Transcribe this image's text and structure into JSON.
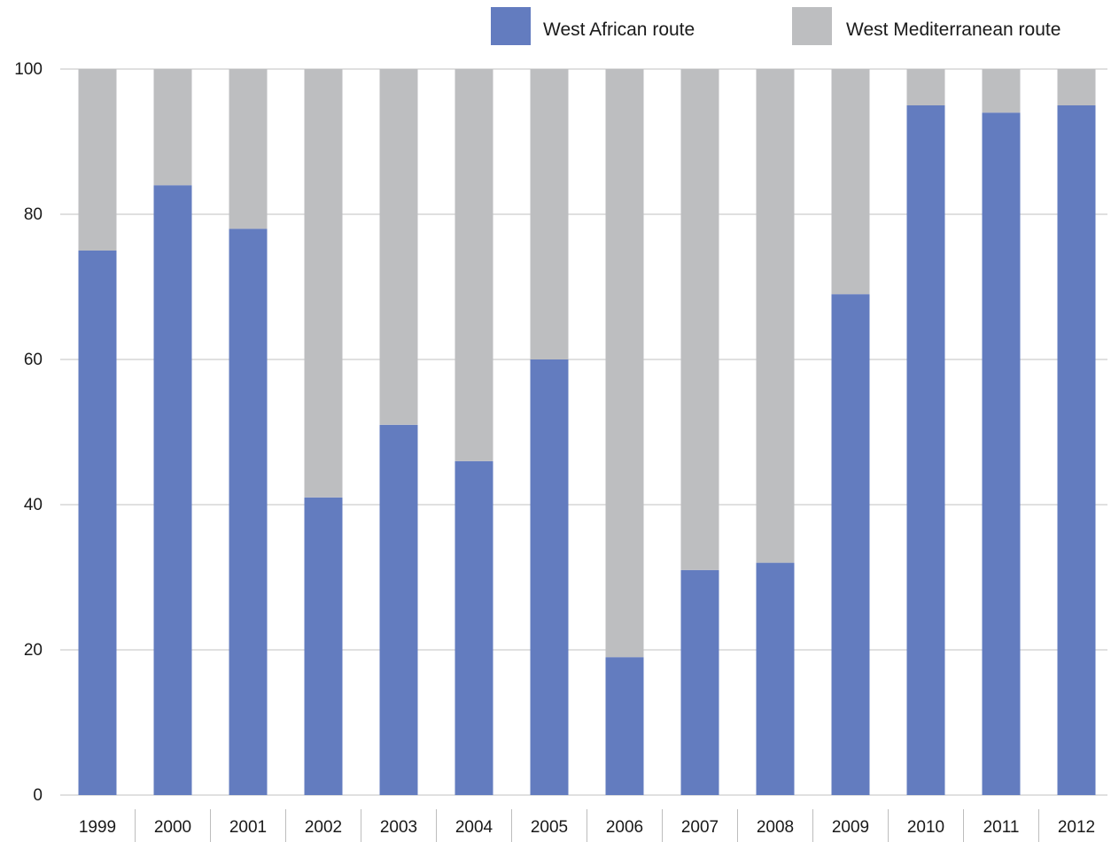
{
  "chart_data": {
    "type": "bar",
    "stacked": true,
    "title": "",
    "xlabel": "",
    "ylabel": "",
    "categories": [
      "1999",
      "2000",
      "2001",
      "2002",
      "2003",
      "2004",
      "2005",
      "2006",
      "2007",
      "2008",
      "2009",
      "2010",
      "2011",
      "2012"
    ],
    "series": [
      {
        "name": "West African route",
        "color": "#637cbf",
        "values": [
          75,
          84,
          78,
          41,
          51,
          46,
          60,
          19,
          31,
          32,
          69,
          95,
          94,
          95
        ]
      },
      {
        "name": "West Mediterranean route",
        "color": "#bdbec0",
        "values": [
          25,
          16,
          22,
          59,
          49,
          54,
          40,
          81,
          69,
          68,
          31,
          5,
          6,
          5
        ]
      }
    ],
    "ylim": [
      0,
      100
    ],
    "yticks": [
      "0",
      "20",
      "40",
      "60",
      "80",
      "100"
    ],
    "grid": true,
    "legend_position": "top-right"
  }
}
